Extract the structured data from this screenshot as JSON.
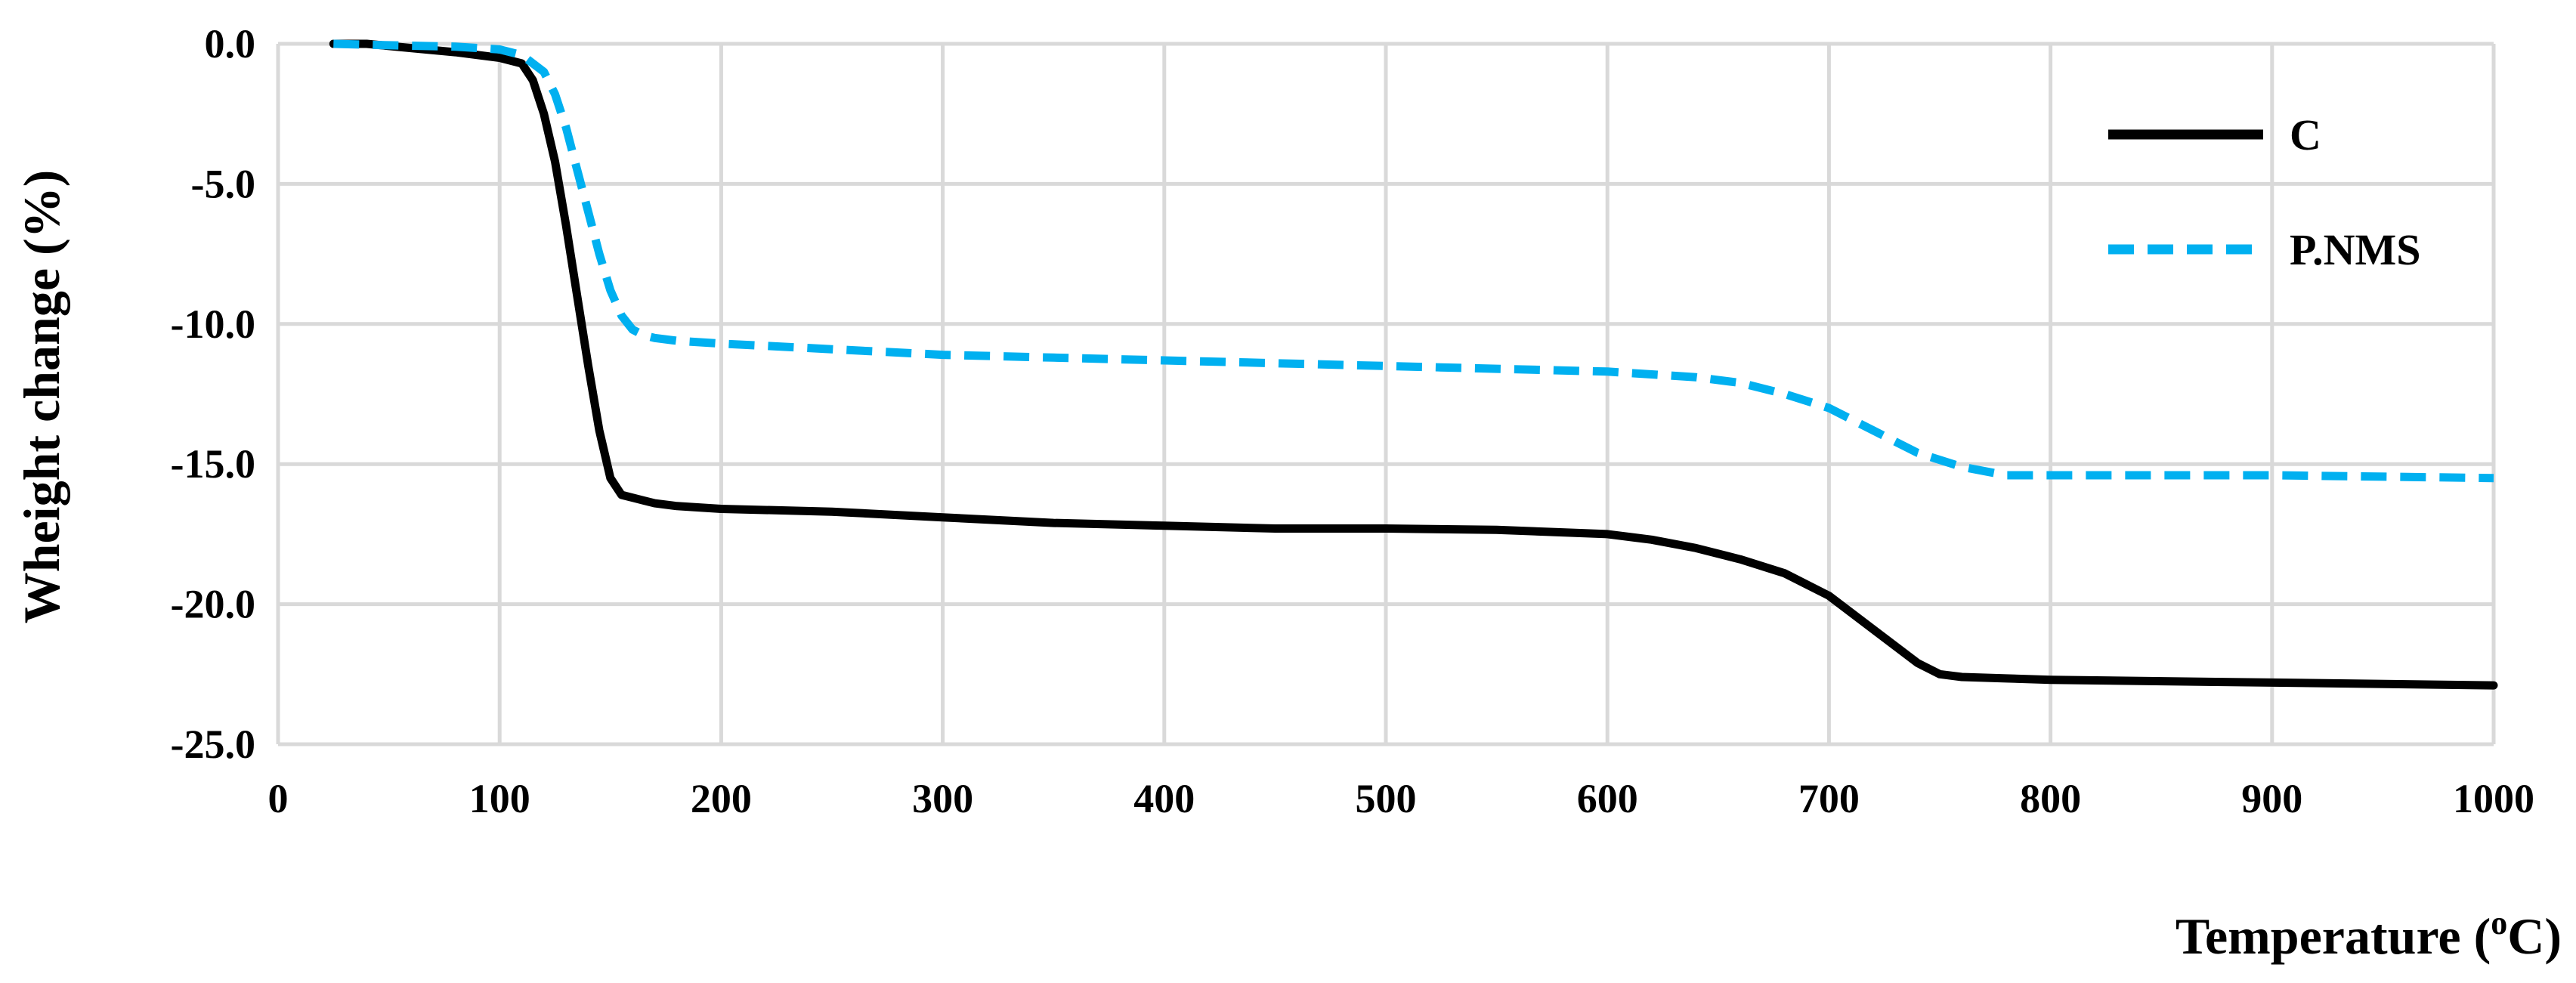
{
  "chart_data": {
    "type": "line",
    "xlabel": "Temperature (",
    "xlabel_super": "o",
    "xlabel_end": "C)",
    "ylabel": "Wheight change (%)",
    "xlim": [
      0,
      1000
    ],
    "ylim": [
      -25,
      0
    ],
    "x_ticks": [
      "0",
      "100",
      "200",
      "300",
      "400",
      "500",
      "600",
      "700",
      "800",
      "900",
      "1000"
    ],
    "y_ticks": [
      "0.0",
      "-5.0",
      "-10.0",
      "-15.0",
      "-20.0",
      "-25.0"
    ],
    "grid": true,
    "legend_position": "top-right",
    "series": [
      {
        "name": "C",
        "color": "#000000",
        "style": "solid",
        "x": [
          25,
          40,
          60,
          80,
          100,
          110,
          115,
          120,
          125,
          130,
          135,
          140,
          145,
          150,
          155,
          160,
          165,
          170,
          180,
          200,
          250,
          300,
          350,
          400,
          450,
          500,
          550,
          600,
          620,
          640,
          660,
          680,
          700,
          720,
          740,
          750,
          760,
          780,
          800,
          900,
          1000
        ],
        "y": [
          0,
          0,
          -0.15,
          -0.3,
          -0.5,
          -0.7,
          -1.3,
          -2.5,
          -4.2,
          -6.5,
          -9.0,
          -11.5,
          -13.8,
          -15.5,
          -16.1,
          -16.2,
          -16.3,
          -16.4,
          -16.5,
          -16.6,
          -16.7,
          -16.9,
          -17.1,
          -17.2,
          -17.3,
          -17.3,
          -17.35,
          -17.5,
          -17.7,
          -18.0,
          -18.4,
          -18.9,
          -19.7,
          -20.9,
          -22.1,
          -22.5,
          -22.6,
          -22.65,
          -22.7,
          -22.8,
          -22.9
        ]
      },
      {
        "name": "P.NMS",
        "color": "#00b0f0",
        "style": "dashed",
        "x": [
          25,
          50,
          80,
          100,
          110,
          120,
          125,
          130,
          135,
          140,
          145,
          150,
          155,
          160,
          165,
          170,
          180,
          200,
          250,
          300,
          350,
          400,
          450,
          500,
          550,
          600,
          620,
          640,
          660,
          680,
          700,
          720,
          740,
          760,
          780,
          800,
          900,
          1000
        ],
        "y": [
          0,
          -0.05,
          -0.1,
          -0.2,
          -0.4,
          -1.0,
          -1.8,
          -3.0,
          -4.5,
          -6.0,
          -7.5,
          -8.8,
          -9.7,
          -10.2,
          -10.4,
          -10.5,
          -10.6,
          -10.7,
          -10.9,
          -11.1,
          -11.2,
          -11.3,
          -11.4,
          -11.5,
          -11.6,
          -11.7,
          -11.8,
          -11.9,
          -12.1,
          -12.5,
          -13.0,
          -13.8,
          -14.6,
          -15.1,
          -15.4,
          -15.4,
          -15.4,
          -15.5
        ]
      }
    ]
  }
}
